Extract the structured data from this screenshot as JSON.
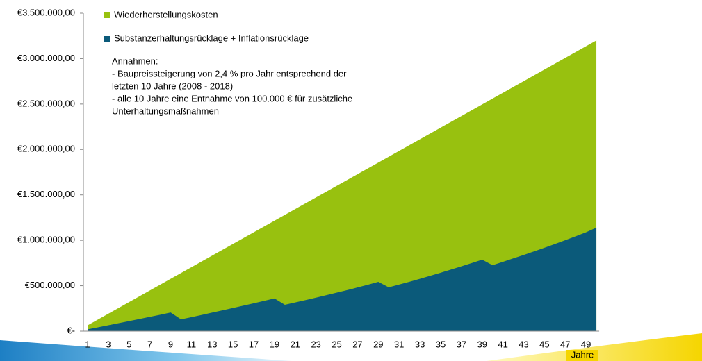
{
  "chart_data": {
    "type": "area",
    "x_label": "Jahre",
    "categories": [
      1,
      null,
      3,
      null,
      5,
      null,
      7,
      null,
      9,
      null,
      11,
      null,
      13,
      null,
      15,
      null,
      17,
      null,
      19,
      null,
      21,
      null,
      23,
      null,
      25,
      null,
      27,
      null,
      29,
      null,
      31,
      null,
      33,
      null,
      35,
      null,
      37,
      null,
      39,
      null,
      41,
      null,
      43,
      null,
      45,
      null,
      47,
      null,
      49,
      null
    ],
    "series": [
      {
        "name": "Wiederherstellungskosten",
        "color": "#98c10f",
        "values": [
          64000,
          128000,
          192000,
          256000,
          320000,
          384000,
          448000,
          512000,
          576000,
          640000,
          704000,
          768000,
          832000,
          896000,
          960000,
          1024000,
          1088000,
          1152000,
          1216000,
          1280000,
          1344000,
          1408000,
          1472000,
          1536000,
          1600000,
          1664000,
          1728000,
          1792000,
          1856000,
          1920000,
          1984000,
          2048000,
          2112000,
          2176000,
          2240000,
          2304000,
          2368000,
          2432000,
          2496000,
          2560000,
          2624000,
          2688000,
          2752000,
          2816000,
          2880000,
          2944000,
          3008000,
          3072000,
          3136000,
          3200000
        ]
      },
      {
        "name": "Substanzerhaltungsrücklage + Inflationsrücklage",
        "color": "#0b5a7a",
        "values": [
          20000,
          42000,
          65000,
          88000,
          111000,
          134000,
          158000,
          181000,
          205000,
          130000,
          154000,
          179000,
          204000,
          229000,
          255000,
          281000,
          307000,
          333000,
          360000,
          290000,
          316000,
          342000,
          369000,
          396000,
          424000,
          452000,
          481000,
          511000,
          543000,
          482000,
          513000,
          544000,
          576000,
          609000,
          643000,
          678000,
          714000,
          750000,
          787000,
          726000,
          763000,
          801000,
          839000,
          878000,
          918000,
          959000,
          1001000,
          1044000,
          1088000,
          1140000
        ]
      }
    ],
    "ylim": [
      0,
      3500000
    ],
    "yticks": [
      {
        "value": 0,
        "label": "€-"
      },
      {
        "value": 500000,
        "label": "€500.000,00"
      },
      {
        "value": 1000000,
        "label": "€1.000.000,00"
      },
      {
        "value": 1500000,
        "label": "€1.500.000,00"
      },
      {
        "value": 2000000,
        "label": "€2.000.000,00"
      },
      {
        "value": 2500000,
        "label": "€2.500.000,00"
      },
      {
        "value": 3000000,
        "label": "€3.000.000,00"
      },
      {
        "value": 3500000,
        "label": "€3.500.000,00"
      }
    ],
    "annotations": [
      "Annahmen:",
      "- Baupreissteigerung von 2,4 % pro Jahr entsprechend der",
      "letzten 10 Jahre (2008 - 2018)",
      "- alle 10 Jahre eine Entnahme von 100.000 € für zusätzliche",
      "Unterhaltungsmaßnahmen"
    ],
    "legend": "top-left"
  }
}
